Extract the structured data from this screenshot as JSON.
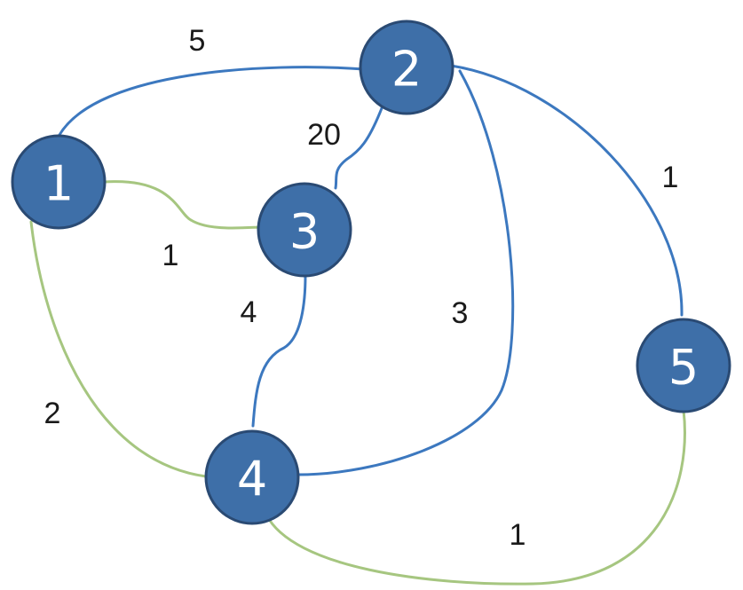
{
  "colors": {
    "node_fill": "#3e6fa8",
    "node_stroke": "#2a4a73",
    "edge_blue": "#3c78bf",
    "edge_green": "#a6c680",
    "label_text": "#1a1a1a"
  },
  "nodes": [
    {
      "id": "1",
      "label": "1"
    },
    {
      "id": "2",
      "label": "2"
    },
    {
      "id": "3",
      "label": "3"
    },
    {
      "id": "4",
      "label": "4"
    },
    {
      "id": "5",
      "label": "5"
    }
  ],
  "edges": [
    {
      "from": "1",
      "to": "2",
      "weight": "5",
      "color": "blue"
    },
    {
      "from": "2",
      "to": "3",
      "weight": "20",
      "color": "blue"
    },
    {
      "from": "2",
      "to": "5",
      "weight": "1",
      "color": "blue"
    },
    {
      "from": "1",
      "to": "3",
      "weight": "1",
      "color": "green"
    },
    {
      "from": "3",
      "to": "4",
      "weight": "4",
      "color": "blue"
    },
    {
      "from": "2",
      "to": "4",
      "weight": "3",
      "color": "blue"
    },
    {
      "from": "1",
      "to": "4",
      "weight": "2",
      "color": "green"
    },
    {
      "from": "4",
      "to": "5",
      "weight": "1",
      "color": "green"
    }
  ]
}
